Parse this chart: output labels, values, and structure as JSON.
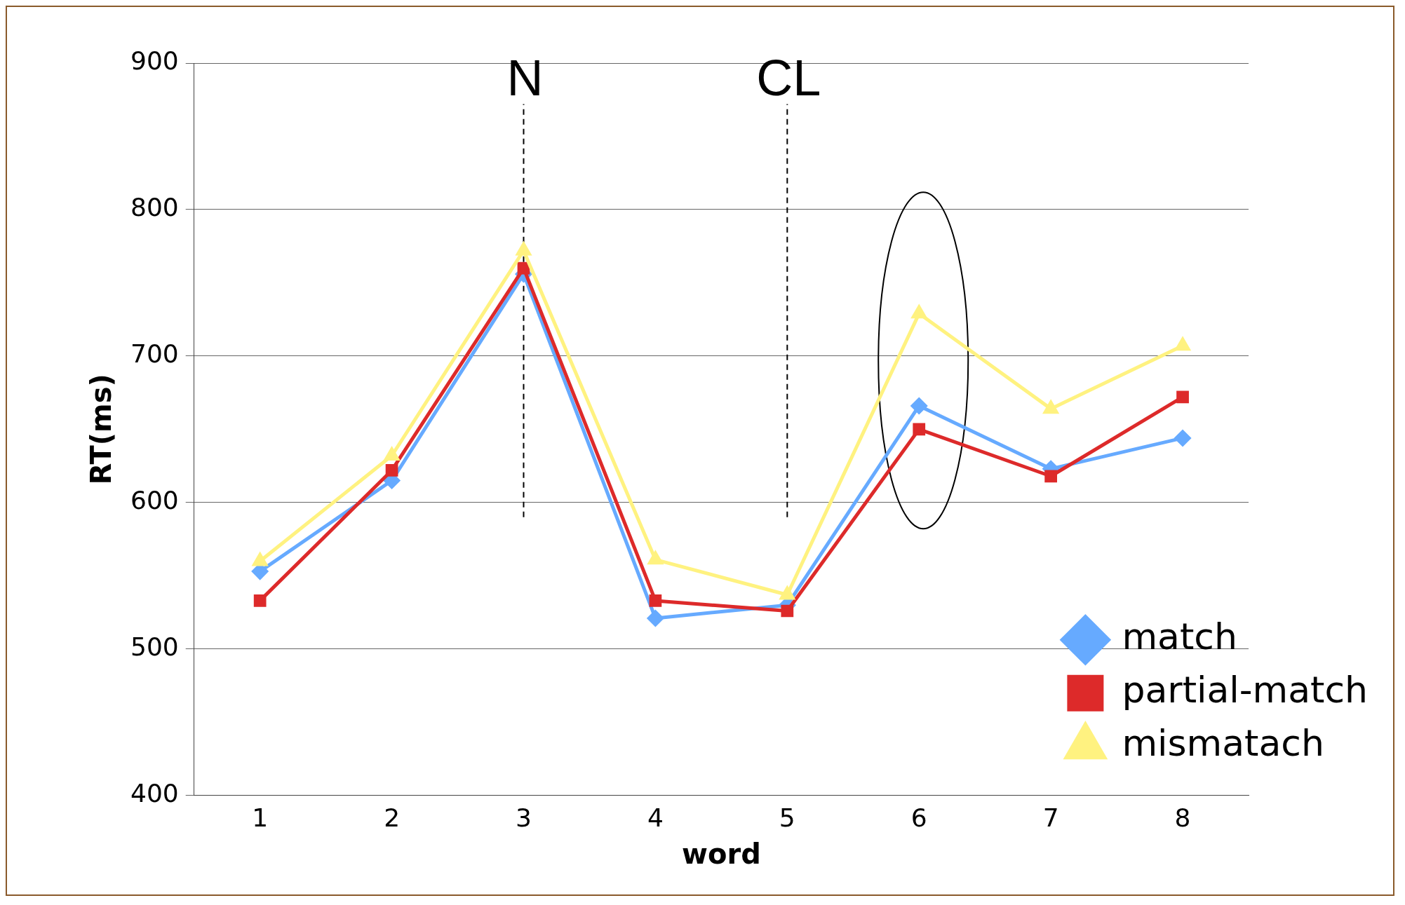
{
  "chart_data": {
    "type": "line",
    "xlabel": "word",
    "ylabel": "RT(ms)",
    "categories": [
      "1",
      "2",
      "3",
      "4",
      "5",
      "6",
      "7",
      "8"
    ],
    "series": [
      {
        "name": "match",
        "color": "#66aaff",
        "marker": "diamond",
        "values": [
          553,
          615,
          756,
          521,
          530,
          666,
          623,
          644
        ]
      },
      {
        "name": "partial-match",
        "color": "#dd2a2a",
        "marker": "square",
        "values": [
          533,
          622,
          760,
          533,
          526,
          650,
          618,
          672
        ]
      },
      {
        "name": "mismatach",
        "color": "#fff280",
        "marker": "triangle",
        "values": [
          560,
          632,
          772,
          561,
          537,
          729,
          664,
          707
        ]
      }
    ],
    "ylim": [
      400,
      900
    ],
    "yticks": [
      400,
      500,
      600,
      700,
      800,
      900
    ],
    "grid": "y",
    "legend": "bottom right",
    "line_style": "solid",
    "ref_lines": [
      {
        "axis": "x",
        "value": "3",
        "label": "N",
        "line_style": "dashed",
        "color": "#000000"
      },
      {
        "axis": "x",
        "value": "5",
        "label": "CL",
        "line_style": "dashed",
        "color": "#000000"
      }
    ]
  }
}
